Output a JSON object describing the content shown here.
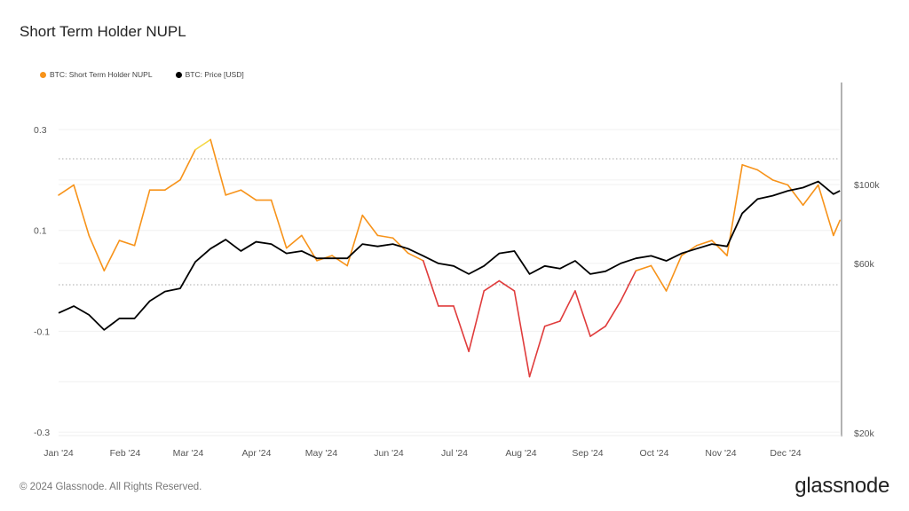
{
  "chart_data": {
    "type": "line",
    "title": "Short Term Holder NUPL",
    "legend_position": "top-left",
    "grid": true,
    "x_ticks": [
      "Jan '24",
      "Feb '24",
      "Mar '24",
      "Apr '24",
      "May '24",
      "Jun '24",
      "Jul '24",
      "Aug '24",
      "Sep '24",
      "Oct '24",
      "Nov '24",
      "Dec '24"
    ],
    "y_left": {
      "ticks": [
        "0.3",
        "0.1",
        "-0.1",
        "-0.3"
      ],
      "range": [
        -0.3,
        0.3
      ]
    },
    "y_right": {
      "ticks": [
        "$100k",
        "$60k",
        "$20k"
      ],
      "scale": "log",
      "range": [
        20000,
        140000
      ]
    },
    "x": [
      "2024-01-01",
      "2024-01-08",
      "2024-01-15",
      "2024-01-22",
      "2024-01-29",
      "2024-02-05",
      "2024-02-12",
      "2024-02-19",
      "2024-02-26",
      "2024-03-04",
      "2024-03-11",
      "2024-03-18",
      "2024-03-25",
      "2024-04-01",
      "2024-04-08",
      "2024-04-15",
      "2024-04-22",
      "2024-04-29",
      "2024-05-06",
      "2024-05-13",
      "2024-05-20",
      "2024-05-27",
      "2024-06-03",
      "2024-06-10",
      "2024-06-17",
      "2024-06-24",
      "2024-07-01",
      "2024-07-08",
      "2024-07-15",
      "2024-07-22",
      "2024-07-29",
      "2024-08-05",
      "2024-08-12",
      "2024-08-19",
      "2024-08-26",
      "2024-09-02",
      "2024-09-09",
      "2024-09-16",
      "2024-09-23",
      "2024-09-30",
      "2024-10-07",
      "2024-10-14",
      "2024-10-21",
      "2024-10-28",
      "2024-11-04",
      "2024-11-11",
      "2024-11-18",
      "2024-11-25",
      "2024-12-02",
      "2024-12-09",
      "2024-12-16",
      "2024-12-23",
      "2024-12-26"
    ],
    "series": [
      {
        "name": "BTC: Short Term Holder NUPL",
        "axis": "left",
        "color": "#f7931a",
        "values": [
          0.17,
          0.19,
          0.09,
          0.02,
          0.08,
          0.07,
          0.18,
          0.18,
          0.2,
          0.26,
          0.28,
          0.17,
          0.18,
          0.16,
          0.16,
          0.065,
          0.09,
          0.04,
          0.05,
          0.03,
          0.13,
          0.09,
          0.085,
          0.055,
          0.04,
          -0.05,
          -0.05,
          -0.14,
          -0.02,
          0.0,
          -0.02,
          -0.19,
          -0.09,
          -0.08,
          -0.02,
          -0.11,
          -0.09,
          -0.04,
          0.02,
          0.03,
          -0.02,
          0.05,
          0.07,
          0.08,
          0.05,
          0.23,
          0.22,
          0.2,
          0.19,
          0.15,
          0.19,
          0.09,
          0.12
        ]
      },
      {
        "name": "BTC: Price [USD]",
        "axis": "right",
        "color": "#000000",
        "values": [
          43500,
          45500,
          43000,
          39000,
          42000,
          42000,
          47000,
          50000,
          51000,
          60600,
          66000,
          70000,
          65000,
          69000,
          68000,
          64000,
          65000,
          62000,
          62000,
          62000,
          68000,
          67000,
          68000,
          66000,
          63000,
          60000,
          59000,
          56000,
          59000,
          64000,
          65000,
          56000,
          59000,
          58000,
          61000,
          56000,
          57000,
          60000,
          62000,
          63000,
          61000,
          64000,
          66000,
          68000,
          67000,
          83000,
          91000,
          93000,
          96000,
          98000,
          102000,
          94000,
          96000
        ]
      }
    ],
    "colors": {
      "negative": "#e03c3c",
      "neutral": "#f7931a",
      "euphoria": "#f5d742",
      "price": "#000000"
    }
  },
  "footer": {
    "copyright": "© 2024 Glassnode. All Rights Reserved.",
    "logo": "glassnode"
  }
}
